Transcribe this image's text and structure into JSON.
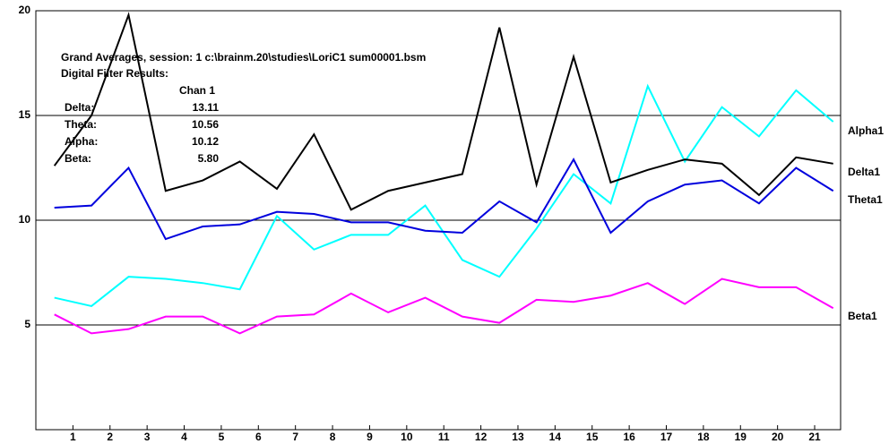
{
  "chart_data": {
    "type": "line",
    "annotation": {
      "title": "Grand Averages, session: 1 c:\\brainm.20\\studies\\LoriC1 sum00001.bsm",
      "subtitle": "Digital Filter Results:",
      "column": "Chan 1",
      "rows": [
        [
          "Delta:",
          "13.11"
        ],
        [
          "Theta:",
          "10.56"
        ],
        [
          "Alpha:",
          "10.12"
        ],
        [
          "Beta:",
          "5.80"
        ]
      ]
    },
    "x": [
      0.5,
      1.5,
      2.5,
      3.5,
      4.5,
      5.5,
      6.5,
      7.5,
      8.5,
      9.5,
      10.5,
      11.5,
      12.5,
      13.5,
      14.5,
      15.5,
      16.5,
      17.5,
      18.5,
      19.5,
      20.5,
      21.5
    ],
    "xlim": [
      0,
      21.7
    ],
    "xticks": [
      1,
      2,
      3,
      4,
      5,
      6,
      7,
      8,
      9,
      10,
      11,
      12,
      13,
      14,
      15,
      16,
      17,
      18,
      19,
      20,
      21
    ],
    "ylim": [
      0,
      20
    ],
    "yticks": [
      5,
      10,
      15,
      20
    ],
    "grid": true,
    "series": [
      {
        "name": "Alpha1",
        "color": "#00ffff",
        "values": [
          6.3,
          5.9,
          7.3,
          7.2,
          7.0,
          6.7,
          10.2,
          8.6,
          9.3,
          9.3,
          10.7,
          8.1,
          7.3,
          9.6,
          12.2,
          10.8,
          16.4,
          12.8,
          15.4,
          14.0,
          16.2,
          14.7
        ]
      },
      {
        "name": "Delta1",
        "color": "#000000",
        "values": [
          12.6,
          15.0,
          19.8,
          11.4,
          11.9,
          12.8,
          11.5,
          14.1,
          10.5,
          11.4,
          11.8,
          12.2,
          19.2,
          11.7,
          17.8,
          11.8,
          12.4,
          12.9,
          12.7,
          11.2,
          13.0,
          12.7
        ]
      },
      {
        "name": "Theta1",
        "color": "#0000dd",
        "values": [
          10.6,
          10.7,
          12.5,
          9.1,
          9.7,
          9.8,
          10.4,
          10.3,
          9.9,
          9.9,
          9.5,
          9.4,
          10.9,
          9.9,
          12.9,
          9.4,
          10.9,
          11.7,
          11.9,
          10.8,
          12.5,
          11.4
        ]
      },
      {
        "name": "Beta1",
        "color": "#ff00ff",
        "values": [
          5.5,
          4.6,
          4.8,
          5.4,
          5.4,
          4.6,
          5.4,
          5.5,
          6.5,
          5.6,
          6.3,
          5.4,
          5.1,
          6.2,
          6.1,
          6.4,
          7.0,
          6.0,
          7.2,
          6.8,
          6.8,
          5.8
        ]
      }
    ]
  }
}
